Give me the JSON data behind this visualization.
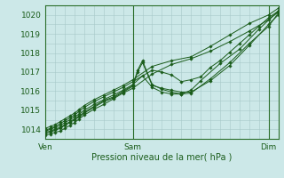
{
  "background_color": "#cce8e8",
  "plot_bg_color": "#cce8e8",
  "grid_color": "#a8c8c8",
  "line_color": "#1a5c1a",
  "marker_color": "#1a5c1a",
  "xlabel": "Pression niveau de la mer( hPa )",
  "ylabel": "",
  "ylim": [
    1013.5,
    1020.5
  ],
  "xlim": [
    0,
    48
  ],
  "xtick_positions": [
    0,
    18,
    46
  ],
  "xtick_labels": [
    "Ven",
    "Sam",
    "Dim"
  ],
  "ytick_positions": [
    1014,
    1015,
    1016,
    1017,
    1018,
    1019,
    1020
  ],
  "vlines": [
    18,
    46
  ],
  "series": [
    {
      "x": [
        0,
        1,
        2,
        3,
        4,
        5,
        6,
        7,
        8,
        10,
        12,
        14,
        16,
        18,
        22,
        26,
        30,
        34,
        38,
        42,
        46,
        48
      ],
      "y": [
        1013.7,
        1013.75,
        1013.85,
        1013.9,
        1014.05,
        1014.2,
        1014.35,
        1014.55,
        1014.75,
        1015.05,
        1015.3,
        1015.6,
        1015.9,
        1016.15,
        1016.9,
        1017.4,
        1017.7,
        1018.1,
        1018.6,
        1019.15,
        1019.75,
        1020.15
      ]
    },
    {
      "x": [
        0,
        1,
        2,
        3,
        4,
        5,
        6,
        7,
        8,
        10,
        12,
        14,
        16,
        18,
        19,
        20,
        22,
        24,
        26,
        28,
        30,
        34,
        38,
        42,
        46,
        48
      ],
      "y": [
        1013.8,
        1013.85,
        1013.95,
        1014.05,
        1014.2,
        1014.35,
        1014.5,
        1014.65,
        1014.85,
        1015.15,
        1015.45,
        1015.65,
        1015.95,
        1016.25,
        1017.0,
        1017.5,
        1016.3,
        1016.15,
        1016.05,
        1015.95,
        1015.95,
        1016.55,
        1017.35,
        1018.4,
        1019.5,
        1020.0
      ]
    },
    {
      "x": [
        0,
        1,
        2,
        3,
        4,
        5,
        6,
        7,
        8,
        10,
        12,
        14,
        16,
        18,
        19,
        20,
        22,
        24,
        26,
        28,
        30,
        34,
        38,
        42,
        46,
        48
      ],
      "y": [
        1013.85,
        1013.9,
        1014.0,
        1014.1,
        1014.25,
        1014.4,
        1014.55,
        1014.7,
        1014.9,
        1015.2,
        1015.5,
        1015.7,
        1016.0,
        1016.3,
        1017.1,
        1017.6,
        1016.35,
        1016.1,
        1015.95,
        1015.85,
        1015.9,
        1016.65,
        1017.5,
        1018.5,
        1019.4,
        1020.1
      ]
    },
    {
      "x": [
        0,
        1,
        2,
        3,
        4,
        5,
        6,
        7,
        8,
        10,
        12,
        14,
        16,
        18,
        20,
        22,
        24,
        26,
        28,
        30,
        32,
        36,
        40,
        44,
        48
      ],
      "y": [
        1013.9,
        1014.0,
        1014.1,
        1014.2,
        1014.35,
        1014.5,
        1014.65,
        1014.8,
        1015.0,
        1015.3,
        1015.55,
        1015.8,
        1016.05,
        1016.35,
        1016.8,
        1016.2,
        1015.95,
        1015.85,
        1015.85,
        1016.05,
        1016.55,
        1017.45,
        1018.2,
        1019.25,
        1020.2
      ]
    },
    {
      "x": [
        0,
        1,
        2,
        3,
        4,
        5,
        6,
        7,
        8,
        10,
        12,
        14,
        16,
        18,
        22,
        24,
        26,
        28,
        30,
        32,
        34,
        36,
        38,
        40,
        42,
        44,
        46,
        48
      ],
      "y": [
        1013.95,
        1014.05,
        1014.15,
        1014.3,
        1014.45,
        1014.6,
        1014.75,
        1014.95,
        1015.15,
        1015.45,
        1015.7,
        1015.95,
        1016.2,
        1016.5,
        1017.1,
        1017.0,
        1016.85,
        1016.5,
        1016.6,
        1016.75,
        1017.25,
        1017.6,
        1018.05,
        1018.5,
        1018.95,
        1019.4,
        1019.85,
        1020.2
      ]
    },
    {
      "x": [
        0,
        1,
        2,
        3,
        4,
        5,
        6,
        7,
        8,
        10,
        12,
        14,
        16,
        18,
        22,
        26,
        30,
        34,
        38,
        42,
        46,
        48
      ],
      "y": [
        1014.05,
        1014.15,
        1014.25,
        1014.4,
        1014.55,
        1014.7,
        1014.85,
        1015.05,
        1015.25,
        1015.55,
        1015.8,
        1016.05,
        1016.3,
        1016.6,
        1017.3,
        1017.6,
        1017.8,
        1018.35,
        1018.95,
        1019.55,
        1020.0,
        1020.35
      ]
    }
  ]
}
